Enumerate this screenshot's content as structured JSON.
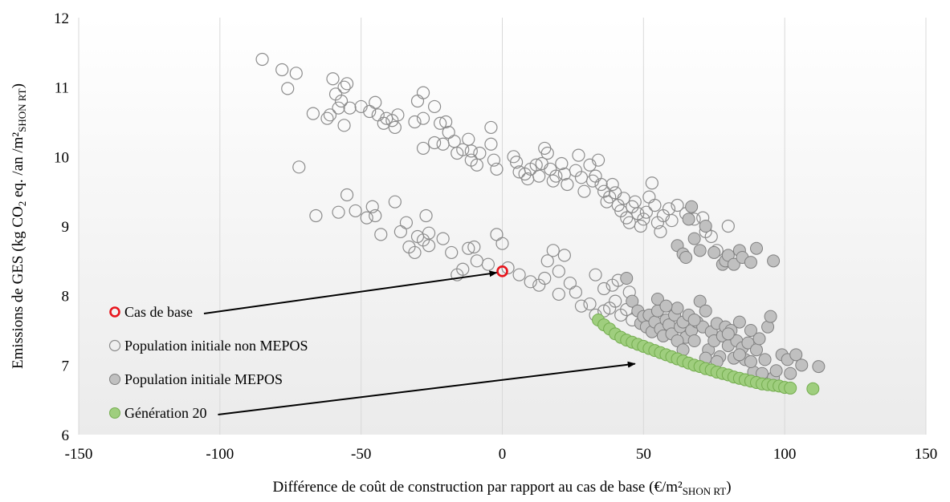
{
  "chart_data": {
    "type": "scatter",
    "title": "",
    "xlabel": {
      "main": "Différence de coût de construction par rapport au cas de base (€/m²",
      "sub": "SHON RT",
      "close": ")"
    },
    "ylabel": {
      "part1": "Emissions de GES (kg CO",
      "sub": "2",
      "part2": " eq. /an /m²",
      "sub2": "SHON RT",
      "close": ")"
    },
    "xlim": [
      -150,
      150
    ],
    "ylim": [
      6,
      12
    ],
    "xticks": [
      -150,
      -100,
      -50,
      0,
      50,
      100,
      150
    ],
    "yticks": [
      6,
      7,
      8,
      9,
      10,
      11,
      12
    ],
    "grid": {
      "x": true,
      "y": false
    },
    "legend_position": "bottom-left",
    "colors": {
      "base_edge": "#e8141c",
      "non_mepos_edge": "#8c8c8c",
      "mepos_fill": "#c0c0c0",
      "mepos_edge": "#7f7f7f",
      "gen20_fill": "#9fce7e",
      "gen20_edge": "#74ad4f",
      "grid": "#d9d9d9"
    },
    "series": [
      {
        "name": "Population initiale non MEPOS",
        "style": "hollow",
        "points": [
          [
            -85,
            11.4
          ],
          [
            -78,
            11.25
          ],
          [
            -73,
            11.2
          ],
          [
            -76,
            10.98
          ],
          [
            -60,
            11.12
          ],
          [
            -59,
            10.9
          ],
          [
            -57,
            10.8
          ],
          [
            -56,
            11.0
          ],
          [
            -55,
            11.05
          ],
          [
            -58,
            10.7
          ],
          [
            -61,
            10.6
          ],
          [
            -67,
            10.62
          ],
          [
            -62,
            10.55
          ],
          [
            -54,
            10.7
          ],
          [
            -56,
            10.45
          ],
          [
            -50,
            10.72
          ],
          [
            -47,
            10.65
          ],
          [
            -45,
            10.78
          ],
          [
            -44,
            10.6
          ],
          [
            -42,
            10.48
          ],
          [
            -41,
            10.55
          ],
          [
            -38,
            10.42
          ],
          [
            -39,
            10.52
          ],
          [
            -37,
            10.6
          ],
          [
            -31,
            10.5
          ],
          [
            -30,
            10.8
          ],
          [
            -28,
            10.92
          ],
          [
            -28,
            10.55
          ],
          [
            -24,
            10.72
          ],
          [
            -22,
            10.48
          ],
          [
            -20,
            10.5
          ],
          [
            -19,
            10.35
          ],
          [
            -24,
            10.2
          ],
          [
            -28,
            10.12
          ],
          [
            -21,
            10.18
          ],
          [
            -17,
            10.22
          ],
          [
            -16,
            10.05
          ],
          [
            -14,
            10.1
          ],
          [
            -12,
            10.25
          ],
          [
            -11,
            10.08
          ],
          [
            -8,
            10.05
          ],
          [
            -11,
            9.95
          ],
          [
            -9,
            9.88
          ],
          [
            -4,
            10.18
          ],
          [
            -4,
            10.42
          ],
          [
            -3,
            9.95
          ],
          [
            -2,
            9.82
          ],
          [
            -72,
            9.85
          ],
          [
            4,
            10.0
          ],
          [
            5,
            9.92
          ],
          [
            6,
            9.78
          ],
          [
            8,
            9.75
          ],
          [
            9,
            9.68
          ],
          [
            10,
            9.82
          ],
          [
            12,
            9.88
          ],
          [
            13,
            9.72
          ],
          [
            14,
            9.9
          ],
          [
            15,
            10.12
          ],
          [
            16,
            10.05
          ],
          [
            17,
            9.82
          ],
          [
            18,
            9.65
          ],
          [
            19,
            9.72
          ],
          [
            21,
            9.9
          ],
          [
            22,
            9.75
          ],
          [
            23,
            9.6
          ],
          [
            26,
            9.8
          ],
          [
            27,
            10.02
          ],
          [
            28,
            9.7
          ],
          [
            29,
            9.5
          ],
          [
            31,
            9.88
          ],
          [
            32,
            9.65
          ],
          [
            33,
            9.72
          ],
          [
            34,
            9.95
          ],
          [
            35,
            9.6
          ],
          [
            36,
            9.5
          ],
          [
            37,
            9.35
          ],
          [
            38,
            9.42
          ],
          [
            39,
            9.6
          ],
          [
            40,
            9.48
          ],
          [
            41,
            9.3
          ],
          [
            42,
            9.22
          ],
          [
            43,
            9.4
          ],
          [
            44,
            9.12
          ],
          [
            45,
            9.05
          ],
          [
            46,
            9.28
          ],
          [
            47,
            9.35
          ],
          [
            48,
            9.18
          ],
          [
            49,
            9.0
          ],
          [
            50,
            9.1
          ],
          [
            51,
            9.2
          ],
          [
            52,
            9.42
          ],
          [
            53,
            9.62
          ],
          [
            54,
            9.3
          ],
          [
            55,
            9.05
          ],
          [
            56,
            8.92
          ],
          [
            57,
            9.15
          ],
          [
            59,
            9.25
          ],
          [
            60,
            9.08
          ],
          [
            62,
            9.3
          ],
          [
            65,
            9.18
          ],
          [
            68,
            9.1
          ],
          [
            71,
            9.12
          ],
          [
            72,
            8.92
          ],
          [
            74,
            8.85
          ],
          [
            80,
            9.0
          ],
          [
            76,
            8.65
          ],
          [
            -55,
            9.45
          ],
          [
            -66,
            9.15
          ],
          [
            -58,
            9.2
          ],
          [
            -52,
            9.22
          ],
          [
            -48,
            9.12
          ],
          [
            -46,
            9.28
          ],
          [
            -45,
            9.15
          ],
          [
            -43,
            8.88
          ],
          [
            -38,
            9.35
          ],
          [
            -34,
            9.05
          ],
          [
            -33,
            8.7
          ],
          [
            -36,
            8.92
          ],
          [
            -30,
            8.85
          ],
          [
            -27,
            9.15
          ],
          [
            -26,
            8.9
          ],
          [
            -31,
            8.62
          ],
          [
            -28,
            8.8
          ],
          [
            -26,
            8.72
          ],
          [
            -21,
            8.82
          ],
          [
            -18,
            8.62
          ],
          [
            -16,
            8.3
          ],
          [
            -14,
            8.38
          ],
          [
            -12,
            8.68
          ],
          [
            -10,
            8.7
          ],
          [
            -9,
            8.5
          ],
          [
            -5,
            8.45
          ],
          [
            0,
            8.75
          ],
          [
            -2,
            8.88
          ],
          [
            2,
            8.4
          ],
          [
            6,
            8.3
          ],
          [
            10,
            8.2
          ],
          [
            13,
            8.15
          ],
          [
            15,
            8.25
          ],
          [
            16,
            8.5
          ],
          [
            18,
            8.65
          ],
          [
            20,
            8.35
          ],
          [
            20,
            8.02
          ],
          [
            22,
            8.58
          ],
          [
            24,
            8.18
          ],
          [
            26,
            8.05
          ],
          [
            28,
            7.85
          ],
          [
            31,
            7.88
          ],
          [
            33,
            7.72
          ],
          [
            36,
            7.78
          ],
          [
            38,
            7.82
          ],
          [
            40,
            7.92
          ],
          [
            42,
            7.72
          ],
          [
            44,
            7.8
          ],
          [
            46,
            7.65
          ],
          [
            33,
            8.3
          ],
          [
            36,
            8.1
          ],
          [
            39,
            8.15
          ],
          [
            41,
            8.22
          ],
          [
            45,
            8.05
          ]
        ]
      },
      {
        "name": "Population initiale MEPOS",
        "style": "filled-gray",
        "points": [
          [
            44,
            8.25
          ],
          [
            46,
            7.92
          ],
          [
            48,
            7.78
          ],
          [
            49,
            7.6
          ],
          [
            50,
            7.7
          ],
          [
            51,
            7.55
          ],
          [
            52,
            7.72
          ],
          [
            53,
            7.48
          ],
          [
            54,
            7.62
          ],
          [
            55,
            7.78
          ],
          [
            56,
            7.52
          ],
          [
            57,
            7.42
          ],
          [
            58,
            7.65
          ],
          [
            59,
            7.58
          ],
          [
            60,
            7.45
          ],
          [
            61,
            7.72
          ],
          [
            62,
            7.82
          ],
          [
            63,
            7.55
          ],
          [
            64,
            7.62
          ],
          [
            65,
            7.4
          ],
          [
            66,
            7.72
          ],
          [
            67,
            7.5
          ],
          [
            68,
            7.35
          ],
          [
            69,
            7.62
          ],
          [
            70,
            7.92
          ],
          [
            71,
            7.55
          ],
          [
            72,
            7.78
          ],
          [
            73,
            7.22
          ],
          [
            74,
            7.48
          ],
          [
            75,
            7.35
          ],
          [
            76,
            7.6
          ],
          [
            77,
            7.12
          ],
          [
            78,
            7.42
          ],
          [
            79,
            7.55
          ],
          [
            80,
            7.28
          ],
          [
            81,
            7.5
          ],
          [
            82,
            7.1
          ],
          [
            83,
            7.35
          ],
          [
            84,
            7.62
          ],
          [
            85,
            7.25
          ],
          [
            86,
            7.08
          ],
          [
            87,
            7.32
          ],
          [
            88,
            7.5
          ],
          [
            89,
            6.9
          ],
          [
            90,
            7.22
          ],
          [
            91,
            7.38
          ],
          [
            92,
            6.88
          ],
          [
            93,
            7.08
          ],
          [
            94,
            7.55
          ],
          [
            95,
            7.7
          ],
          [
            96,
            6.82
          ],
          [
            97,
            6.92
          ],
          [
            99,
            7.15
          ],
          [
            101,
            7.08
          ],
          [
            102,
            6.88
          ],
          [
            104,
            7.15
          ],
          [
            106,
            7.0
          ],
          [
            112,
            6.98
          ],
          [
            62,
            8.72
          ],
          [
            64,
            8.6
          ],
          [
            65,
            8.55
          ],
          [
            66,
            9.1
          ],
          [
            67,
            9.28
          ],
          [
            68,
            8.82
          ],
          [
            70,
            8.65
          ],
          [
            72,
            9.0
          ],
          [
            75,
            8.62
          ],
          [
            78,
            8.45
          ],
          [
            79,
            8.5
          ],
          [
            80,
            8.58
          ],
          [
            82,
            8.45
          ],
          [
            84,
            8.65
          ],
          [
            85,
            8.55
          ],
          [
            88,
            8.48
          ],
          [
            90,
            8.68
          ],
          [
            96,
            8.5
          ],
          [
            55,
            7.95
          ],
          [
            58,
            7.85
          ],
          [
            62,
            7.35
          ],
          [
            64,
            7.22
          ],
          [
            68,
            7.65
          ],
          [
            72,
            7.1
          ],
          [
            76,
            7.05
          ],
          [
            80,
            7.45
          ],
          [
            84,
            7.15
          ],
          [
            88,
            7.05
          ]
        ]
      },
      {
        "name": "Génération 20",
        "style": "filled-green",
        "points": [
          [
            34,
            7.65
          ],
          [
            36,
            7.58
          ],
          [
            38,
            7.52
          ],
          [
            40,
            7.45
          ],
          [
            42,
            7.4
          ],
          [
            44,
            7.36
          ],
          [
            46,
            7.33
          ],
          [
            48,
            7.3
          ],
          [
            50,
            7.27
          ],
          [
            52,
            7.24
          ],
          [
            54,
            7.21
          ],
          [
            56,
            7.18
          ],
          [
            58,
            7.15
          ],
          [
            60,
            7.12
          ],
          [
            62,
            7.09
          ],
          [
            64,
            7.06
          ],
          [
            66,
            7.03
          ],
          [
            68,
            7.0
          ],
          [
            70,
            6.98
          ],
          [
            72,
            6.95
          ],
          [
            74,
            6.93
          ],
          [
            76,
            6.9
          ],
          [
            78,
            6.88
          ],
          [
            80,
            6.86
          ],
          [
            82,
            6.83
          ],
          [
            84,
            6.81
          ],
          [
            86,
            6.79
          ],
          [
            88,
            6.77
          ],
          [
            90,
            6.75
          ],
          [
            92,
            6.73
          ],
          [
            94,
            6.72
          ],
          [
            96,
            6.71
          ],
          [
            98,
            6.7
          ],
          [
            100,
            6.68
          ],
          [
            102,
            6.67
          ],
          [
            110,
            6.66
          ]
        ]
      },
      {
        "name": "Cas de base",
        "style": "hollow-red",
        "points": [
          [
            0,
            8.35
          ]
        ]
      }
    ],
    "legend": [
      {
        "label": "Cas de base",
        "style": "hollow-red"
      },
      {
        "label": "Population initiale non MEPOS",
        "style": "hollow"
      },
      {
        "label": "Population initiale MEPOS",
        "style": "filled-gray"
      },
      {
        "label": "Génération 20",
        "style": "filled-green"
      }
    ],
    "annotations": [
      {
        "type": "arrow",
        "from_legend": 0,
        "to": [
          -2,
          8.33
        ]
      },
      {
        "type": "arrow",
        "from_legend": 3,
        "to": [
          47,
          7.02
        ]
      }
    ]
  }
}
